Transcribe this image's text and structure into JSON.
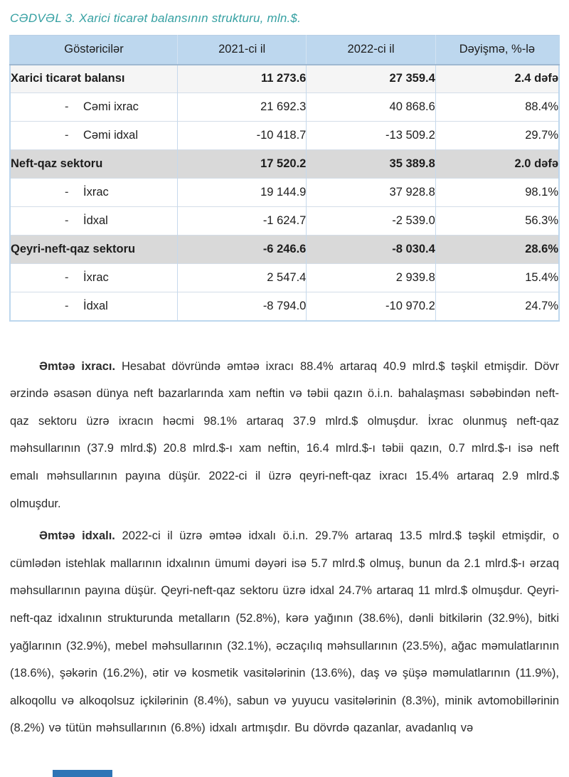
{
  "page": {
    "title": "CƏDVƏL 3. Xarici ticarət balansının strukturu, mln.$."
  },
  "table": {
    "headers": [
      "Göstəricilər",
      "2021-ci il",
      "2022-ci il",
      "Dəyişmə, %-lə"
    ],
    "rows": [
      {
        "marker": "",
        "label": "Xarici ticarət balansı",
        "y2021": "11 273.6",
        "y2022": "27 359.4",
        "change": "2.4 dəfə"
      },
      {
        "marker": "-",
        "label": "Cəmi ixrac",
        "y2021": "21 692.3",
        "y2022": "40 868.6",
        "change": "88.4%"
      },
      {
        "marker": "-",
        "label": "Cəmi idxal",
        "y2021": "-10 418.7",
        "y2022": "-13 509.2",
        "change": "29.7%"
      },
      {
        "marker": "",
        "label": "Neft-qaz sektoru",
        "y2021": "17 520.2",
        "y2022": "35 389.8",
        "change": "2.0 dəfə"
      },
      {
        "marker": "-",
        "label": "İxrac",
        "y2021": "19 144.9",
        "y2022": "37 928.8",
        "change": "98.1%"
      },
      {
        "marker": "-",
        "label": "İdxal",
        "y2021": "-1 624.7",
        "y2022": "-2 539.0",
        "change": "56.3%"
      },
      {
        "marker": "",
        "label": "Qeyri-neft-qaz sektoru",
        "y2021": "-6 246.6",
        "y2022": "-8 030.4",
        "change": "28.6%"
      },
      {
        "marker": "-",
        "label": "İxrac",
        "y2021": "2 547.4",
        "y2022": "2 939.8",
        "change": "15.4%"
      },
      {
        "marker": "-",
        "label": "İdxal",
        "y2021": "-8 794.0",
        "y2022": "-10 970.2",
        "change": "24.7%"
      }
    ]
  },
  "paragraphs": [
    {
      "lead": "Əmtəə ixracı.",
      "body": "Hesabat dövründə əmtəə ixracı 88.4% artaraq 40.9 mlrd.$ təşkil etmişdir. Dövr ərzində əsasən dünya neft bazarlarında xam neftin və təbii qazın ö.i.n. bahalaşması səbəbindən neft-qaz sektoru üzrə ixracın həcmi 98.1% artaraq 37.9 mlrd.$ olmuşdur. İxrac olunmuş neft-qaz məhsullarının (37.9 mlrd.$) 20.8 mlrd.$-ı xam neftin, 16.4 mlrd.$-ı təbii qazın, 0.7 mlrd.$-ı isə neft emalı məhsullarının payına düşür. 2022-ci il üzrə qeyri-neft-qaz ixracı 15.4% artaraq 2.9 mlrd.$ olmuşdur."
    },
    {
      "lead": "Əmtəə idxalı.",
      "body": "2022-ci il üzrə əmtəə idxalı ö.i.n. 29.7% artaraq 13.5 mlrd.$ təşkil etmişdir, o cümlədən istehlak mallarının idxalının ümumi dəyəri isə 5.7 mlrd.$ olmuş, bunun da 2.1 mlrd.$-ı ərzaq məhsullarının payına düşür. Qeyri-neft-qaz sektoru üzrə idxal 24.7% artaraq 11 mlrd.$ olmuşdur. Qeyri-neft-qaz idxalının strukturunda metalların (52.8%), kərə yağının (38.6%), dənli bitkilərin (32.9%), bitki yağlarının (32.9%), mebel məhsullarının (32.1%), əczaçılıq məhsullarının (23.5%), ağac məmulatlarının (18.6%), şəkərin (16.2%), ətir və kosmetik vasitələrinin (13.6%), daş və şüşə məmulatlarının (11.9%), alkoqollu və alkoqolsuz içkilərinin (8.4%), sabun və yuyucu vasitələrinin (8.3%), minik avtomobillərinin (8.2%) və tütün məhsullarının (6.8%) idxalı artmışdır. Bu dövrdə qazanlar, avadanlıq və"
    }
  ],
  "colors": {
    "title_teal": "#35a0a2",
    "header_bg": "#bdd7ee",
    "sector_row_bg": "#d9d9d9",
    "balance_row_bg": "#f5f5f5",
    "cutoff_bar_blue": "#2e75b6"
  }
}
